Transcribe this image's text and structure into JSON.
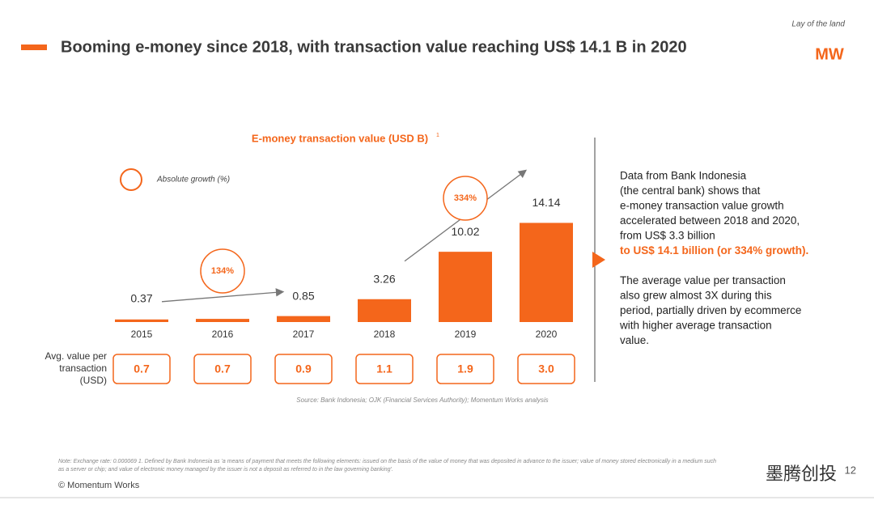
{
  "header": {
    "title": "Booming e-money since 2018, with transaction value reaching US$ 14.1 B  in 2020",
    "section": "Lay of the land",
    "logo": "MW"
  },
  "chart_data": {
    "type": "bar",
    "title": "E-money transaction value (USD B)",
    "title_superscript": "1",
    "categories": [
      "2015",
      "2016",
      "2017",
      "2018",
      "2019",
      "2020"
    ],
    "values": [
      0.37,
      0.45,
      0.85,
      3.26,
      10.02,
      14.14
    ],
    "value_labels": [
      "0.37",
      null,
      "0.85",
      "3.26",
      "10.02",
      "14.14"
    ],
    "color": "#f4661b",
    "ylim": [
      0,
      15
    ],
    "legend": "Absolute growth (%)",
    "annotations": [
      {
        "text": "134%",
        "from": "2015",
        "to": "2017"
      },
      {
        "text": "334%",
        "from": "2018",
        "to": "2020"
      }
    ],
    "avg_label": [
      "Avg. value per",
      "transaction",
      "(USD)"
    ],
    "avg_values": [
      0.7,
      0.7,
      0.9,
      1.1,
      1.9,
      3.0
    ],
    "avg_value_labels": [
      "0.7",
      "0.7",
      "0.9",
      "1.1",
      "1.9",
      "3.0"
    ],
    "source": "Source: Bank Indonesia; OJK (Financial Services Authority); Momentum Works analysis"
  },
  "description": {
    "lines": [
      "Data from Bank Indonesia",
      "(the central bank) shows that",
      "e-money transaction value growth",
      "accelerated between 2018 and 2020,",
      "from US$ 3.3 billion"
    ],
    "highlight": "to US$ 14.1 billion (or 334% growth).",
    "lines2": [
      "The average value per transaction",
      "also grew almost 3X during this",
      "period, partially driven by ecommerce",
      "with higher average transaction",
      "value."
    ]
  },
  "footer": {
    "note": [
      "Note: Exchange rate: 0.000069   1. Defined by Bank Indonesia as 'a means of payment that meets the following elements: issued on the basis of the value of money that was deposited in advance to the issuer; value of money stored electronically in a medium such",
      "as a server or chip; and value of electronic money managed by the issuer is not a deposit as referred to in the law governing banking'."
    ],
    "copyright": "© Momentum Works",
    "page": "12",
    "watermark": "墨腾创投"
  }
}
